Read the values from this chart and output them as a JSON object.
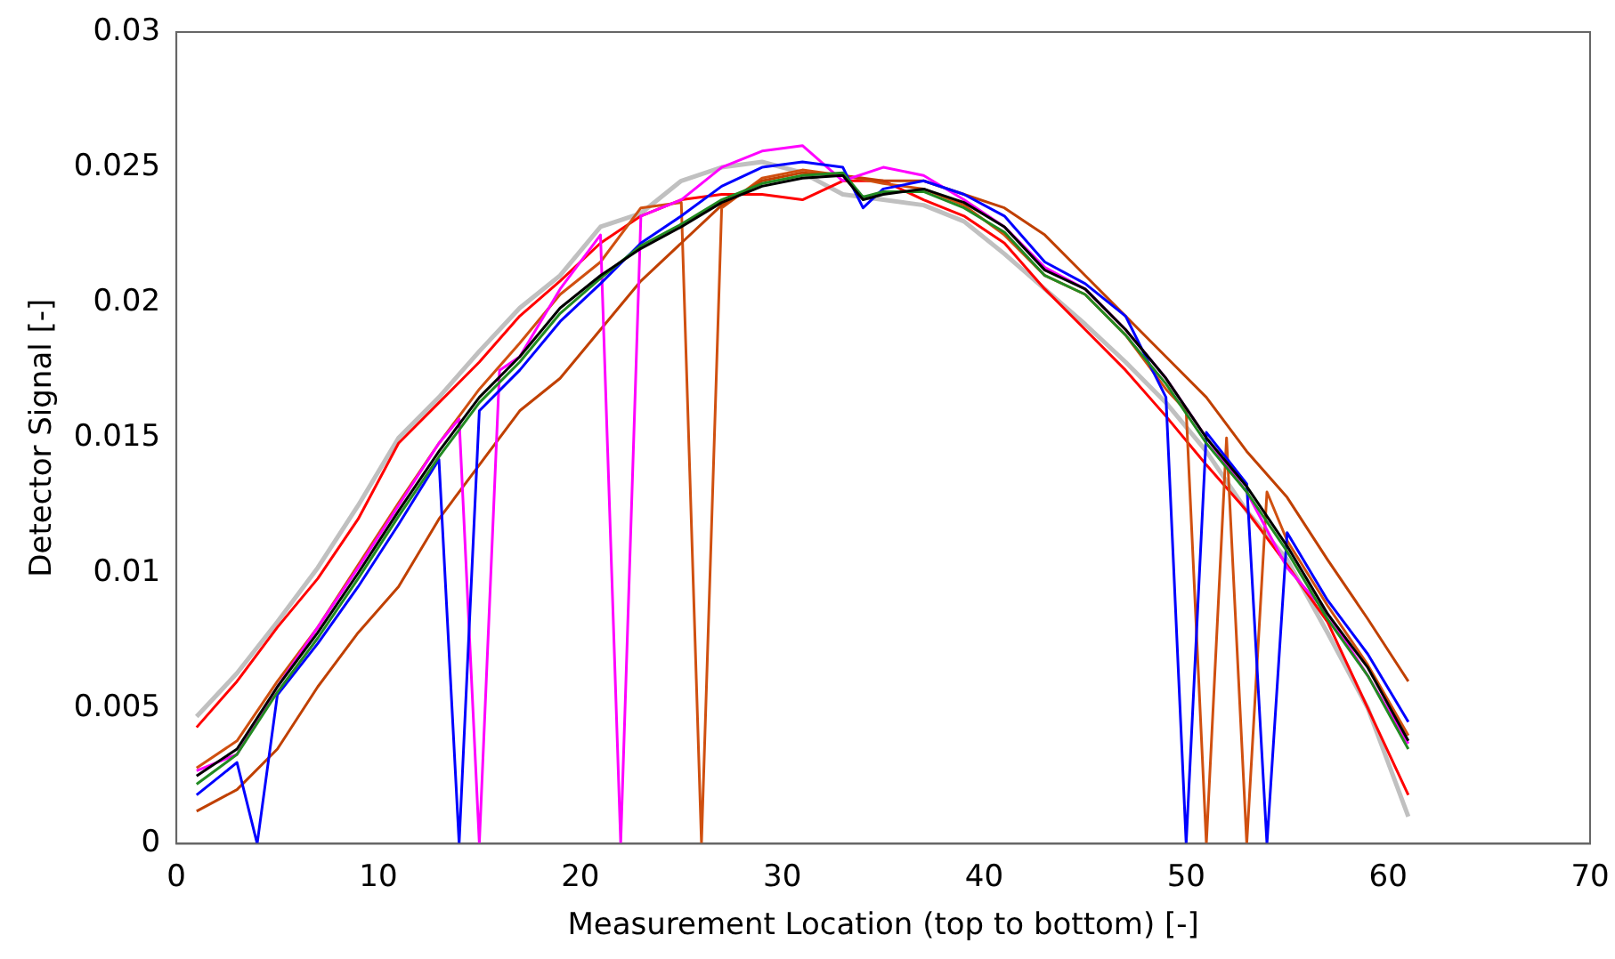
{
  "chart_data": {
    "type": "line",
    "xlabel": "Measurement Location (top to bottom) [-]",
    "ylabel": "Detector Signal [-]",
    "xlim": [
      0,
      70
    ],
    "xticks": [
      0,
      10,
      20,
      30,
      40,
      50,
      60,
      70
    ],
    "ylim": [
      0,
      0.03
    ],
    "yticks": [
      0,
      0.005,
      0.01,
      0.015,
      0.02,
      0.025,
      0.03
    ],
    "grid": false,
    "legend": false,
    "marker": "none",
    "line_style": "solid",
    "series": [
      {
        "color": "#000000",
        "x": [
          1,
          3,
          5,
          7,
          9,
          11,
          13,
          15,
          17,
          19,
          21,
          23,
          25,
          27,
          29,
          31,
          33,
          34,
          35,
          37,
          39,
          41,
          43,
          45,
          47,
          49,
          51,
          53,
          55,
          57,
          59,
          61
        ],
        "values": [
          0.0025,
          0.0035,
          0.0058,
          0.0078,
          0.01,
          0.0123,
          0.0145,
          0.0165,
          0.018,
          0.0198,
          0.021,
          0.022,
          0.0228,
          0.0237,
          0.0243,
          0.0246,
          0.0247,
          0.0238,
          0.024,
          0.0242,
          0.0237,
          0.0228,
          0.0212,
          0.0205,
          0.019,
          0.0172,
          0.015,
          0.0132,
          0.011,
          0.0085,
          0.0065,
          0.0038
        ]
      },
      {
        "color": "#228b22",
        "x": [
          1,
          3,
          5,
          7,
          9,
          11,
          13,
          15,
          17,
          19,
          21,
          23,
          25,
          27,
          29,
          31,
          33,
          34,
          35,
          37,
          39,
          41,
          43,
          45,
          47,
          49,
          51,
          53,
          55,
          57,
          59,
          61
        ],
        "values": [
          0.0022,
          0.0033,
          0.0056,
          0.0076,
          0.0098,
          0.0121,
          0.0143,
          0.0163,
          0.0178,
          0.0196,
          0.0209,
          0.0221,
          0.0229,
          0.0238,
          0.0244,
          0.0247,
          0.0248,
          0.0239,
          0.0241,
          0.0241,
          0.0235,
          0.0226,
          0.021,
          0.0203,
          0.0188,
          0.017,
          0.0148,
          0.013,
          0.0108,
          0.0083,
          0.0062,
          0.0035
        ]
      },
      {
        "color": "#0000ff",
        "x": [
          1,
          3,
          4,
          5,
          7,
          9,
          11,
          13,
          14,
          15,
          17,
          19,
          21,
          23,
          25,
          27,
          29,
          31,
          33,
          34,
          35,
          37,
          39,
          41,
          43,
          45,
          47,
          49,
          50,
          51,
          53,
          54,
          55,
          57,
          59,
          61
        ],
        "values": [
          0.0018,
          0.003,
          0,
          0.0055,
          0.0074,
          0.0095,
          0.0118,
          0.0142,
          0,
          0.016,
          0.0175,
          0.0193,
          0.0207,
          0.0222,
          0.0232,
          0.0243,
          0.025,
          0.0252,
          0.025,
          0.0235,
          0.0242,
          0.0245,
          0.024,
          0.0232,
          0.0215,
          0.0207,
          0.0195,
          0.0165,
          0,
          0.0152,
          0.0133,
          0,
          0.0115,
          0.009,
          0.007,
          0.0045
        ]
      },
      {
        "color": "#ff00ff",
        "x": [
          1,
          3,
          5,
          7,
          9,
          11,
          13,
          14,
          15,
          16,
          17,
          19,
          21,
          22,
          23,
          25,
          27,
          29,
          31,
          33,
          35,
          37,
          39,
          41,
          43,
          45,
          47,
          49,
          51,
          53,
          55,
          57,
          59,
          61
        ],
        "values": [
          0.0027,
          0.0033,
          0.0058,
          0.008,
          0.0102,
          0.0125,
          0.0148,
          0.0157,
          0,
          0.0175,
          0.018,
          0.0205,
          0.0225,
          0,
          0.0232,
          0.0238,
          0.025,
          0.0256,
          0.0258,
          0.0245,
          0.025,
          0.0247,
          0.0238,
          0.0228,
          0.0213,
          0.0205,
          0.019,
          0.0172,
          0.015,
          0.013,
          0.0102,
          0.0085,
          0.0062,
          0.0037
        ]
      },
      {
        "color": "#c04000",
        "x": [
          1,
          3,
          5,
          7,
          9,
          11,
          13,
          15,
          17,
          19,
          21,
          23,
          25,
          27,
          29,
          31,
          33,
          35,
          37,
          39,
          41,
          43,
          45,
          47,
          49,
          51,
          53,
          55,
          57,
          59,
          61
        ],
        "values": [
          0.0012,
          0.002,
          0.0035,
          0.0058,
          0.0078,
          0.0095,
          0.012,
          0.014,
          0.016,
          0.0172,
          0.019,
          0.0208,
          0.0222,
          0.0236,
          0.0245,
          0.0248,
          0.0247,
          0.0245,
          0.0245,
          0.024,
          0.0235,
          0.0225,
          0.021,
          0.0195,
          0.018,
          0.0165,
          0.0145,
          0.0128,
          0.0105,
          0.0083,
          0.006
        ]
      },
      {
        "color": "#d05010",
        "x": [
          1,
          3,
          5,
          7,
          9,
          11,
          13,
          15,
          17,
          19,
          21,
          23,
          25,
          26,
          27,
          29,
          31,
          33,
          35,
          37,
          39,
          41,
          43,
          45,
          47,
          49,
          50,
          51,
          52,
          53,
          54,
          55,
          57,
          59,
          61
        ],
        "values": [
          0.0028,
          0.0038,
          0.006,
          0.008,
          0.0103,
          0.0126,
          0.0148,
          0.0168,
          0.0185,
          0.0203,
          0.0215,
          0.0235,
          0.0237,
          0,
          0.0235,
          0.0246,
          0.0249,
          0.0247,
          0.0244,
          0.0242,
          0.0236,
          0.0225,
          0.021,
          0.0203,
          0.0188,
          0.0168,
          0.016,
          0,
          0.015,
          0,
          0.013,
          0.0112,
          0.0088,
          0.0066,
          0.004
        ]
      },
      {
        "color": "#ff0000",
        "x": [
          1,
          3,
          5,
          7,
          9,
          11,
          13,
          15,
          17,
          19,
          21,
          23,
          25,
          27,
          29,
          31,
          33,
          35,
          37,
          39,
          41,
          43,
          45,
          47,
          49,
          51,
          53,
          55,
          57,
          59,
          61
        ],
        "values": [
          0.0043,
          0.006,
          0.008,
          0.0098,
          0.012,
          0.0148,
          0.0163,
          0.0178,
          0.0195,
          0.0208,
          0.0222,
          0.0232,
          0.0238,
          0.024,
          0.024,
          0.0238,
          0.0245,
          0.0245,
          0.0238,
          0.0232,
          0.0222,
          0.0205,
          0.019,
          0.0175,
          0.0158,
          0.014,
          0.0123,
          0.0103,
          0.0082,
          0.005,
          0.0018
        ]
      },
      {
        "color": "#c0c0c0",
        "x": [
          1,
          3,
          5,
          7,
          9,
          11,
          13,
          15,
          17,
          19,
          21,
          23,
          25,
          27,
          29,
          31,
          33,
          35,
          37,
          39,
          41,
          43,
          45,
          47,
          49,
          51,
          53,
          55,
          57,
          59,
          61
        ],
        "values": [
          0.0047,
          0.0063,
          0.0082,
          0.0102,
          0.0125,
          0.015,
          0.0165,
          0.0182,
          0.0198,
          0.021,
          0.0228,
          0.0233,
          0.0245,
          0.025,
          0.0252,
          0.0248,
          0.024,
          0.0238,
          0.0236,
          0.023,
          0.0218,
          0.0205,
          0.0192,
          0.0178,
          0.0163,
          0.0145,
          0.0123,
          0.0105,
          0.0078,
          0.005,
          0.001
        ]
      }
    ]
  }
}
